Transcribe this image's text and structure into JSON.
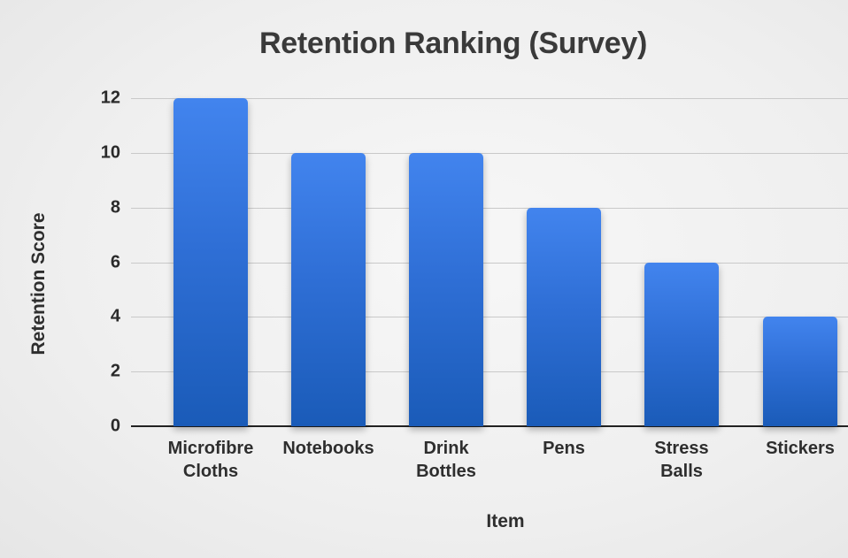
{
  "chart_data": {
    "type": "bar",
    "title": "Retention Ranking (Survey)",
    "xlabel": "Item",
    "ylabel": "Retention Score",
    "categories": [
      "Microfibre Cloths",
      "Notebooks",
      "Drink Bottles",
      "Pens",
      "Stress Balls",
      "Stickers"
    ],
    "category_labels": [
      "Microfibre\nCloths",
      "Notebooks",
      "Drink\nBottles",
      "Pens",
      "Stress\nBalls",
      "Stickers"
    ],
    "values": [
      12,
      10,
      10,
      8,
      6,
      4
    ],
    "ylim": [
      0,
      12
    ],
    "yticks": [
      "0",
      "2",
      "4",
      "6",
      "8",
      "10",
      "12"
    ],
    "grid": true,
    "legend": null,
    "bar_color": "#2f6fd6"
  }
}
